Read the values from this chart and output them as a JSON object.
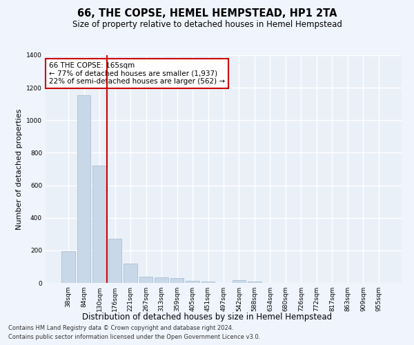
{
  "title": "66, THE COPSE, HEMEL HEMPSTEAD, HP1 2TA",
  "subtitle": "Size of property relative to detached houses in Hemel Hempstead",
  "xlabel": "Distribution of detached houses by size in Hemel Hempstead",
  "ylabel": "Number of detached properties",
  "categories": [
    "38sqm",
    "84sqm",
    "130sqm",
    "176sqm",
    "221sqm",
    "267sqm",
    "313sqm",
    "359sqm",
    "405sqm",
    "451sqm",
    "497sqm",
    "542sqm",
    "588sqm",
    "634sqm",
    "680sqm",
    "726sqm",
    "772sqm",
    "817sqm",
    "863sqm",
    "909sqm",
    "955sqm"
  ],
  "values": [
    195,
    1155,
    720,
    270,
    120,
    38,
    32,
    30,
    14,
    8,
    0,
    18,
    10,
    0,
    0,
    0,
    0,
    0,
    0,
    0,
    0
  ],
  "bar_color": "#c8d8e8",
  "bar_edge_color": "#a0b8cc",
  "vline_color": "#cc0000",
  "annotation_text": "66 THE COPSE: 165sqm\n← 77% of detached houses are smaller (1,937)\n22% of semi-detached houses are larger (562) →",
  "annotation_box_color": "#ffffff",
  "annotation_box_edge": "#cc0000",
  "ylim": [
    0,
    1400
  ],
  "yticks": [
    0,
    200,
    400,
    600,
    800,
    1000,
    1200,
    1400
  ],
  "bg_color": "#eaf0f8",
  "fig_bg_color": "#f0f4fc",
  "grid_color": "#ffffff",
  "footer1": "Contains HM Land Registry data © Crown copyright and database right 2024.",
  "footer2": "Contains public sector information licensed under the Open Government Licence v3.0."
}
